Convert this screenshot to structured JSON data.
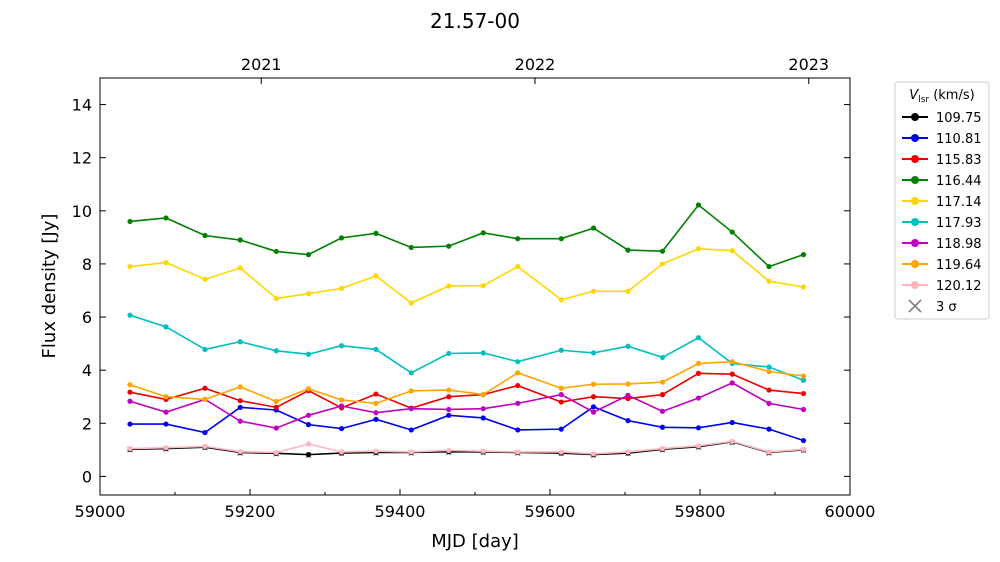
{
  "chart_data": {
    "type": "line",
    "title": "21.57-00",
    "xlabel": "MJD [day]",
    "ylabel": "Flux density [Jy]",
    "xlim": [
      59000,
      60000
    ],
    "ylim": [
      -0.7,
      15.0
    ],
    "xticks": [
      59000,
      59200,
      59400,
      59600,
      59800,
      60000
    ],
    "yticks": [
      0,
      2,
      4,
      6,
      8,
      10,
      12,
      14
    ],
    "top_axis": {
      "ticks": [
        {
          "label": "2021",
          "x": 59215
        },
        {
          "label": "2022",
          "x": 59580
        },
        {
          "label": "2023",
          "x": 59945
        }
      ]
    },
    "legend": {
      "title_main": "V",
      "title_sub": "lsr",
      "title_unit": " (km/s)",
      "placement": "outside-right"
    },
    "x": [
      59040,
      59088,
      59140,
      59187,
      59235,
      59278,
      59322,
      59368,
      59415,
      59465,
      59511,
      59557,
      59615,
      59658,
      59704,
      59750,
      59798,
      59843,
      59892,
      59938
    ],
    "series": [
      {
        "name": "109.75",
        "color": "#000000",
        "values": [
          1.02,
          1.05,
          1.1,
          0.9,
          0.87,
          0.82,
          0.88,
          0.9,
          0.9,
          0.93,
          0.92,
          0.9,
          0.88,
          0.82,
          0.88,
          1.02,
          1.12,
          1.3,
          0.9,
          1.0
        ]
      },
      {
        "name": "110.81",
        "color": "#0000ee",
        "values": [
          1.97,
          1.97,
          1.65,
          2.6,
          2.5,
          1.95,
          1.8,
          2.15,
          1.75,
          2.3,
          2.2,
          1.75,
          1.78,
          2.62,
          2.1,
          1.85,
          1.83,
          2.03,
          1.78,
          1.35
        ]
      },
      {
        "name": "115.83",
        "color": "#ee0000",
        "values": [
          3.17,
          2.9,
          3.32,
          2.85,
          2.6,
          3.23,
          2.58,
          3.1,
          2.57,
          3.0,
          3.08,
          3.42,
          2.8,
          3.0,
          2.93,
          3.08,
          3.88,
          3.85,
          3.25,
          3.12
        ]
      },
      {
        "name": "116.44",
        "color": "#008000",
        "values": [
          9.6,
          9.73,
          9.07,
          8.9,
          8.47,
          8.35,
          8.98,
          9.15,
          8.62,
          8.67,
          9.17,
          8.95,
          8.95,
          9.35,
          8.52,
          8.48,
          10.22,
          9.2,
          7.9,
          8.35
        ]
      },
      {
        "name": "117.14",
        "color": "#ffd700",
        "values": [
          7.9,
          8.05,
          7.42,
          7.85,
          6.7,
          6.88,
          7.08,
          7.55,
          6.53,
          7.17,
          7.18,
          7.9,
          6.65,
          6.97,
          6.97,
          8.0,
          8.57,
          8.5,
          7.35,
          7.13
        ]
      },
      {
        "name": "117.93",
        "color": "#00bfbf",
        "values": [
          6.07,
          5.63,
          4.78,
          5.07,
          4.73,
          4.6,
          4.92,
          4.78,
          3.9,
          4.63,
          4.65,
          4.32,
          4.75,
          4.65,
          4.9,
          4.48,
          5.22,
          4.25,
          4.12,
          3.62
        ]
      },
      {
        "name": "118.98",
        "color": "#bf00bf",
        "values": [
          2.83,
          2.42,
          2.9,
          2.08,
          1.82,
          2.3,
          2.65,
          2.4,
          2.55,
          2.52,
          2.55,
          2.75,
          3.08,
          2.42,
          3.05,
          2.45,
          2.95,
          3.52,
          2.75,
          2.52
        ]
      },
      {
        "name": "119.64",
        "color": "#ffa500",
        "values": [
          3.45,
          3.0,
          2.9,
          3.37,
          2.82,
          3.3,
          2.88,
          2.75,
          3.22,
          3.25,
          3.08,
          3.9,
          3.32,
          3.47,
          3.48,
          3.55,
          4.25,
          4.32,
          3.95,
          3.78
        ]
      },
      {
        "name": "120.12",
        "color": "#ffb6c1",
        "values": [
          1.05,
          1.08,
          1.13,
          0.93,
          0.9,
          1.22,
          0.92,
          0.95,
          0.92,
          0.98,
          0.95,
          0.92,
          0.92,
          0.85,
          0.92,
          1.05,
          1.15,
          1.32,
          0.92,
          1.02
        ]
      }
    ],
    "sigma3": {
      "name": "3 σ",
      "color": "#808080",
      "values": [
        1.0,
        1.03,
        1.08,
        0.88,
        0.85,
        0.8,
        0.87,
        0.88,
        0.88,
        0.9,
        0.9,
        0.88,
        0.87,
        0.8,
        0.87,
        1.0,
        1.1,
        1.28,
        0.88,
        0.98
      ]
    },
    "grid": false
  }
}
